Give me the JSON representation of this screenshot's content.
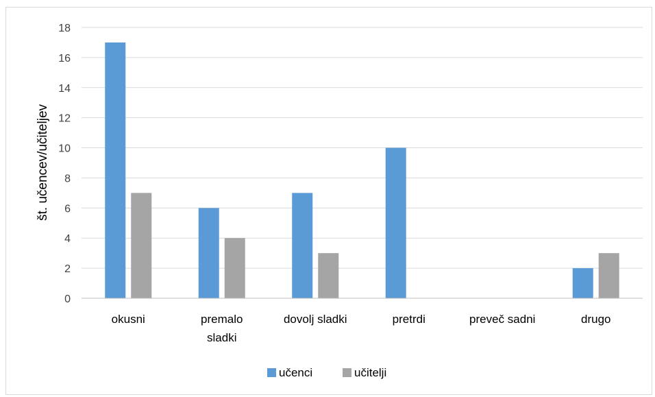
{
  "chart_data": {
    "type": "bar",
    "categories": [
      [
        "okusni"
      ],
      [
        "premalo",
        "sladki"
      ],
      [
        "dovolj sladki"
      ],
      [
        "pretrdi"
      ],
      [
        "preveč sadni"
      ],
      [
        "drugo"
      ]
    ],
    "series": [
      {
        "name": "učenci",
        "values": [
          17,
          6,
          7,
          10,
          0,
          2
        ],
        "color": "#5b9bd5"
      },
      {
        "name": "učitelji",
        "values": [
          7,
          4,
          3,
          0,
          0,
          3
        ],
        "color": "#a5a5a5"
      }
    ],
    "ylabel": "št. učencev/učiteljev",
    "xlabel": "",
    "ylim": [
      0,
      18
    ],
    "yticks": [
      0,
      2,
      4,
      6,
      8,
      10,
      12,
      14,
      16,
      18
    ],
    "grid": true,
    "legend_position": "bottom"
  }
}
